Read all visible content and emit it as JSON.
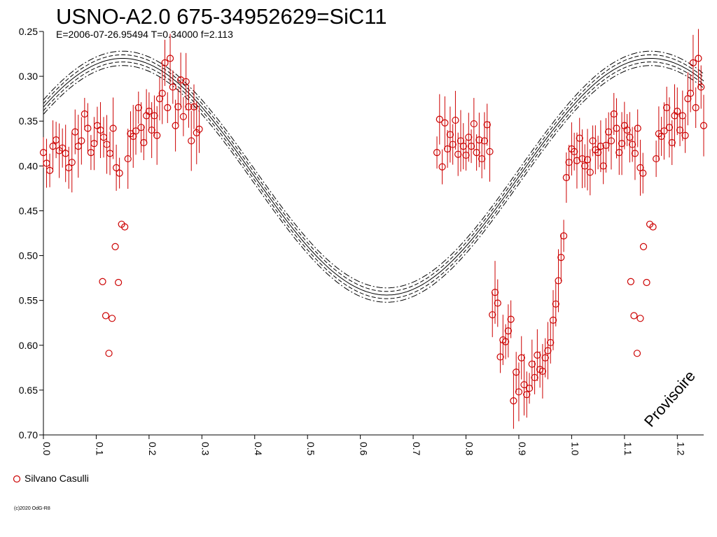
{
  "chart_data": {
    "type": "scatter",
    "title": "USNO-A2.0 675-34952629=SiC11",
    "subtitle": "E=2006-07-26.95494    T=0.34000    f=2.113",
    "x_ticks": [
      "0.0",
      "0.1",
      "0.2",
      "0.3",
      "0.4",
      "0.5",
      "0.6",
      "0.7",
      "0.8",
      "0.9",
      "1.0",
      "1.1",
      "1.2"
    ],
    "y_ticks": [
      "0.25",
      "0.30",
      "0.35",
      "0.40",
      "0.45",
      "0.50",
      "0.55",
      "0.60",
      "0.65",
      "0.70"
    ],
    "xlim": [
      0.0,
      1.25
    ],
    "ylim": [
      0.25,
      0.7
    ],
    "y_inverted": true,
    "legend": {
      "label": "Silvano Casulli",
      "color": "#cc0000",
      "position": "bottom-left"
    },
    "watermark": "Provisoire",
    "copyright": "(c)2020 OdG-R8",
    "model_curve": {
      "mean": 0.412,
      "amplitude": 0.132,
      "period": 1.0,
      "max_phase": 0.15,
      "envelope": [
        0.004,
        0.008
      ]
    },
    "series": [
      {
        "name": "Silvano Casulli",
        "color": "#cc0000",
        "points": [
          [
            0.0,
            0.385
          ],
          [
            0.006,
            0.397
          ],
          [
            0.012,
            0.405
          ],
          [
            0.018,
            0.378
          ],
          [
            0.024,
            0.371
          ],
          [
            0.03,
            0.383
          ],
          [
            0.036,
            0.38
          ],
          [
            0.042,
            0.386
          ],
          [
            0.048,
            0.402
          ],
          [
            0.054,
            0.396
          ],
          [
            0.06,
            0.362
          ],
          [
            0.066,
            0.378
          ],
          [
            0.072,
            0.372
          ],
          [
            0.078,
            0.342
          ],
          [
            0.084,
            0.358
          ],
          [
            0.09,
            0.385
          ],
          [
            0.096,
            0.375
          ],
          [
            0.102,
            0.355
          ],
          [
            0.108,
            0.36
          ],
          [
            0.114,
            0.368
          ],
          [
            0.12,
            0.376
          ],
          [
            0.126,
            0.386
          ],
          [
            0.132,
            0.358
          ],
          [
            0.138,
            0.402
          ],
          [
            0.144,
            0.408
          ],
          [
            0.112,
            0.529
          ],
          [
            0.118,
            0.567
          ],
          [
            0.124,
            0.609
          ],
          [
            0.13,
            0.57
          ],
          [
            0.136,
            0.49
          ],
          [
            0.142,
            0.53
          ],
          [
            0.148,
            0.465
          ],
          [
            0.154,
            0.468
          ],
          [
            0.16,
            0.392
          ],
          [
            0.165,
            0.364
          ],
          [
            0.17,
            0.367
          ],
          [
            0.175,
            0.361
          ],
          [
            0.18,
            0.335
          ],
          [
            0.185,
            0.357
          ],
          [
            0.19,
            0.374
          ],
          [
            0.195,
            0.344
          ],
          [
            0.2,
            0.339
          ],
          [
            0.205,
            0.36
          ],
          [
            0.21,
            0.344
          ],
          [
            0.215,
            0.366
          ],
          [
            0.22,
            0.325
          ],
          [
            0.225,
            0.319
          ],
          [
            0.23,
            0.285
          ],
          [
            0.235,
            0.335
          ],
          [
            0.24,
            0.28
          ],
          [
            0.245,
            0.312
          ],
          [
            0.25,
            0.355
          ],
          [
            0.255,
            0.334
          ],
          [
            0.26,
            0.304
          ],
          [
            0.265,
            0.345
          ],
          [
            0.27,
            0.306
          ],
          [
            0.275,
            0.334
          ],
          [
            0.28,
            0.372
          ],
          [
            0.285,
            0.334
          ],
          [
            0.29,
            0.363
          ],
          [
            0.295,
            0.359
          ],
          [
            0.745,
            0.385
          ],
          [
            0.75,
            0.348
          ],
          [
            0.755,
            0.401
          ],
          [
            0.76,
            0.352
          ],
          [
            0.765,
            0.381
          ],
          [
            0.77,
            0.365
          ],
          [
            0.775,
            0.376
          ],
          [
            0.78,
            0.349
          ],
          [
            0.785,
            0.387
          ],
          [
            0.79,
            0.372
          ],
          [
            0.795,
            0.378
          ],
          [
            0.8,
            0.388
          ],
          [
            0.805,
            0.368
          ],
          [
            0.81,
            0.378
          ],
          [
            0.815,
            0.353
          ],
          [
            0.82,
            0.385
          ],
          [
            0.825,
            0.371
          ],
          [
            0.83,
            0.392
          ],
          [
            0.835,
            0.372
          ],
          [
            0.84,
            0.354
          ],
          [
            0.845,
            0.384
          ],
          [
            0.85,
            0.566
          ],
          [
            0.855,
            0.541
          ],
          [
            0.86,
            0.553
          ],
          [
            0.865,
            0.613
          ],
          [
            0.87,
            0.594
          ],
          [
            0.875,
            0.596
          ],
          [
            0.88,
            0.584
          ],
          [
            0.885,
            0.571
          ],
          [
            0.89,
            0.662
          ],
          [
            0.895,
            0.63
          ],
          [
            0.9,
            0.652
          ],
          [
            0.905,
            0.614
          ],
          [
            0.91,
            0.644
          ],
          [
            0.915,
            0.655
          ],
          [
            0.92,
            0.648
          ],
          [
            0.925,
            0.621
          ],
          [
            0.93,
            0.636
          ],
          [
            0.935,
            0.611
          ],
          [
            0.94,
            0.627
          ],
          [
            0.945,
            0.629
          ],
          [
            0.95,
            0.614
          ],
          [
            0.955,
            0.606
          ],
          [
            0.96,
            0.597
          ],
          [
            0.965,
            0.572
          ],
          [
            0.97,
            0.554
          ],
          [
            0.975,
            0.528
          ],
          [
            0.98,
            0.502
          ],
          [
            0.985,
            0.478
          ],
          [
            0.99,
            0.413
          ],
          [
            0.995,
            0.396
          ],
          [
            1.0,
            0.381
          ],
          [
            1.005,
            0.384
          ],
          [
            1.01,
            0.394
          ],
          [
            1.015,
            0.369
          ],
          [
            1.02,
            0.392
          ],
          [
            1.025,
            0.4
          ],
          [
            1.03,
            0.393
          ],
          [
            1.035,
            0.407
          ],
          [
            1.04,
            0.372
          ],
          [
            1.045,
            0.382
          ],
          [
            1.05,
            0.385
          ],
          [
            1.055,
            0.378
          ],
          [
            1.06,
            0.4
          ],
          [
            1.065,
            0.377
          ],
          [
            1.07,
            0.362
          ],
          [
            1.075,
            0.372
          ],
          [
            1.08,
            0.342
          ],
          [
            1.085,
            0.358
          ],
          [
            1.09,
            0.385
          ],
          [
            1.095,
            0.375
          ],
          [
            1.1,
            0.355
          ],
          [
            1.105,
            0.36
          ],
          [
            1.11,
            0.368
          ],
          [
            1.115,
            0.376
          ],
          [
            1.12,
            0.386
          ],
          [
            1.125,
            0.358
          ],
          [
            1.13,
            0.402
          ],
          [
            1.135,
            0.408
          ],
          [
            1.112,
            0.529
          ],
          [
            1.118,
            0.567
          ],
          [
            1.124,
            0.609
          ],
          [
            1.13,
            0.57
          ],
          [
            1.136,
            0.49
          ],
          [
            1.142,
            0.53
          ],
          [
            1.148,
            0.465
          ],
          [
            1.154,
            0.468
          ],
          [
            1.16,
            0.392
          ],
          [
            1.165,
            0.364
          ],
          [
            1.17,
            0.367
          ],
          [
            1.175,
            0.361
          ],
          [
            1.18,
            0.335
          ],
          [
            1.185,
            0.357
          ],
          [
            1.19,
            0.374
          ],
          [
            1.195,
            0.344
          ],
          [
            1.2,
            0.339
          ],
          [
            1.205,
            0.36
          ],
          [
            1.21,
            0.344
          ],
          [
            1.215,
            0.366
          ],
          [
            1.22,
            0.325
          ],
          [
            1.225,
            0.319
          ],
          [
            1.23,
            0.285
          ],
          [
            1.235,
            0.335
          ],
          [
            1.24,
            0.28
          ],
          [
            1.245,
            0.312
          ],
          [
            1.25,
            0.355
          ]
        ]
      }
    ]
  }
}
